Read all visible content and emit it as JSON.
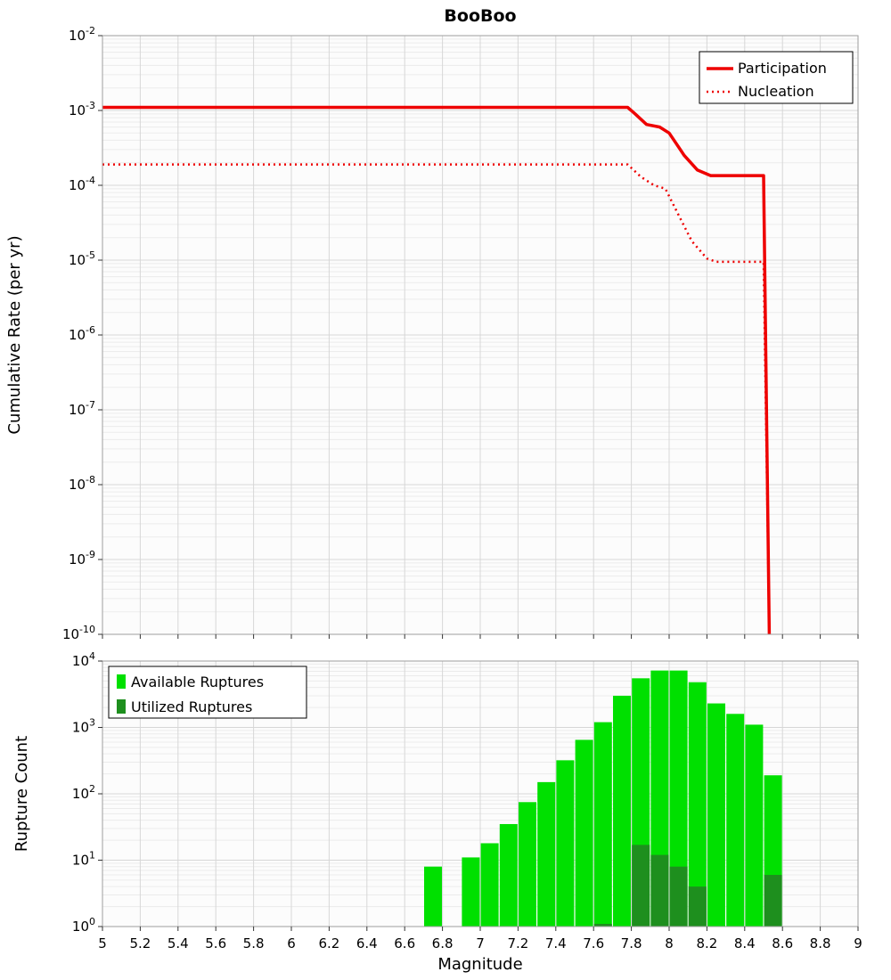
{
  "figure": {
    "background": "#ffffff",
    "plot_background": "#fcfcfc",
    "grid_major_color": "#d7d7d7",
    "grid_minor_color": "#ebebeb",
    "border_color": "#9e9e9e",
    "tick_color": "#333333"
  },
  "chart_data": [
    {
      "type": "line",
      "title": "BooBoo",
      "ylabel": "Cumulative Rate (per yr)",
      "xlabel": "",
      "x_axis": {
        "min": 5,
        "max": 9,
        "tick_step": 0.2,
        "tick_labels": [
          "5",
          "5.2",
          "5.4",
          "5.6",
          "5.8",
          "6",
          "6.2",
          "6.4",
          "6.6",
          "6.8",
          "7",
          "7.2",
          "7.4",
          "7.6",
          "7.8",
          "8",
          "8.2",
          "8.4",
          "8.6",
          "8.8",
          "9"
        ]
      },
      "y_axis": {
        "scale": "log",
        "min_exponent": -10,
        "max_exponent": -2
      },
      "legend": {
        "position": "top-right"
      },
      "series": [
        {
          "name": "Participation",
          "style": "solid",
          "color": "#ee0000",
          "points": [
            [
              5,
              0.0011
            ],
            [
              7.78,
              0.0011
            ],
            [
              7.82,
              0.0009
            ],
            [
              7.88,
              0.00065
            ],
            [
              7.95,
              0.0006
            ],
            [
              8.0,
              0.0005
            ],
            [
              8.08,
              0.00025
            ],
            [
              8.15,
              0.00016
            ],
            [
              8.22,
              0.000135
            ],
            [
              8.5,
              0.000135
            ],
            [
              8.53,
              1e-10
            ]
          ]
        },
        {
          "name": "Nucleation",
          "style": "dotted",
          "color": "#ee0000",
          "points": [
            [
              5,
              0.00019
            ],
            [
              7.78,
              0.00019
            ],
            [
              7.85,
              0.00013
            ],
            [
              7.92,
              0.0001
            ],
            [
              7.98,
              9e-05
            ],
            [
              8.05,
              4e-05
            ],
            [
              8.12,
              1.8e-05
            ],
            [
              8.2,
              1.05e-05
            ],
            [
              8.25,
              9.5e-06
            ],
            [
              8.5,
              9.5e-06
            ],
            [
              8.53,
              1e-10
            ]
          ]
        }
      ]
    },
    {
      "type": "bar",
      "title": "",
      "ylabel": "Rupture Count",
      "xlabel": "Magnitude",
      "bin_width": 0.1,
      "x_axis": {
        "min": 5,
        "max": 9,
        "tick_step": 0.2,
        "tick_labels": [
          "5",
          "5.2",
          "5.4",
          "5.6",
          "5.8",
          "6",
          "6.2",
          "6.4",
          "6.6",
          "6.8",
          "7",
          "7.2",
          "7.4",
          "7.6",
          "7.8",
          "8",
          "8.2",
          "8.4",
          "8.6",
          "8.8",
          "9"
        ]
      },
      "y_axis": {
        "scale": "log",
        "min_exponent": 0,
        "max_exponent": 4
      },
      "legend": {
        "position": "top-left"
      },
      "series": [
        {
          "name": "Available Ruptures",
          "color": "#00e000",
          "bins": [
            [
              6.7,
              8
            ],
            [
              6.9,
              11
            ],
            [
              7.0,
              18
            ],
            [
              7.1,
              35
            ],
            [
              7.2,
              75
            ],
            [
              7.3,
              150
            ],
            [
              7.4,
              320
            ],
            [
              7.5,
              650
            ],
            [
              7.6,
              1200
            ],
            [
              7.7,
              3000
            ],
            [
              7.8,
              5500
            ],
            [
              7.9,
              7200
            ],
            [
              8.0,
              7200
            ],
            [
              8.1,
              4800
            ],
            [
              8.2,
              2300
            ],
            [
              8.3,
              1600
            ],
            [
              8.4,
              1100
            ],
            [
              8.5,
              190
            ]
          ]
        },
        {
          "name": "Utilized Ruptures",
          "color": "#1e8f1e",
          "bins": [
            [
              7.6,
              1
            ],
            [
              7.8,
              17
            ],
            [
              7.9,
              12
            ],
            [
              8.0,
              8
            ],
            [
              8.1,
              4
            ],
            [
              8.5,
              6
            ]
          ]
        }
      ]
    }
  ]
}
